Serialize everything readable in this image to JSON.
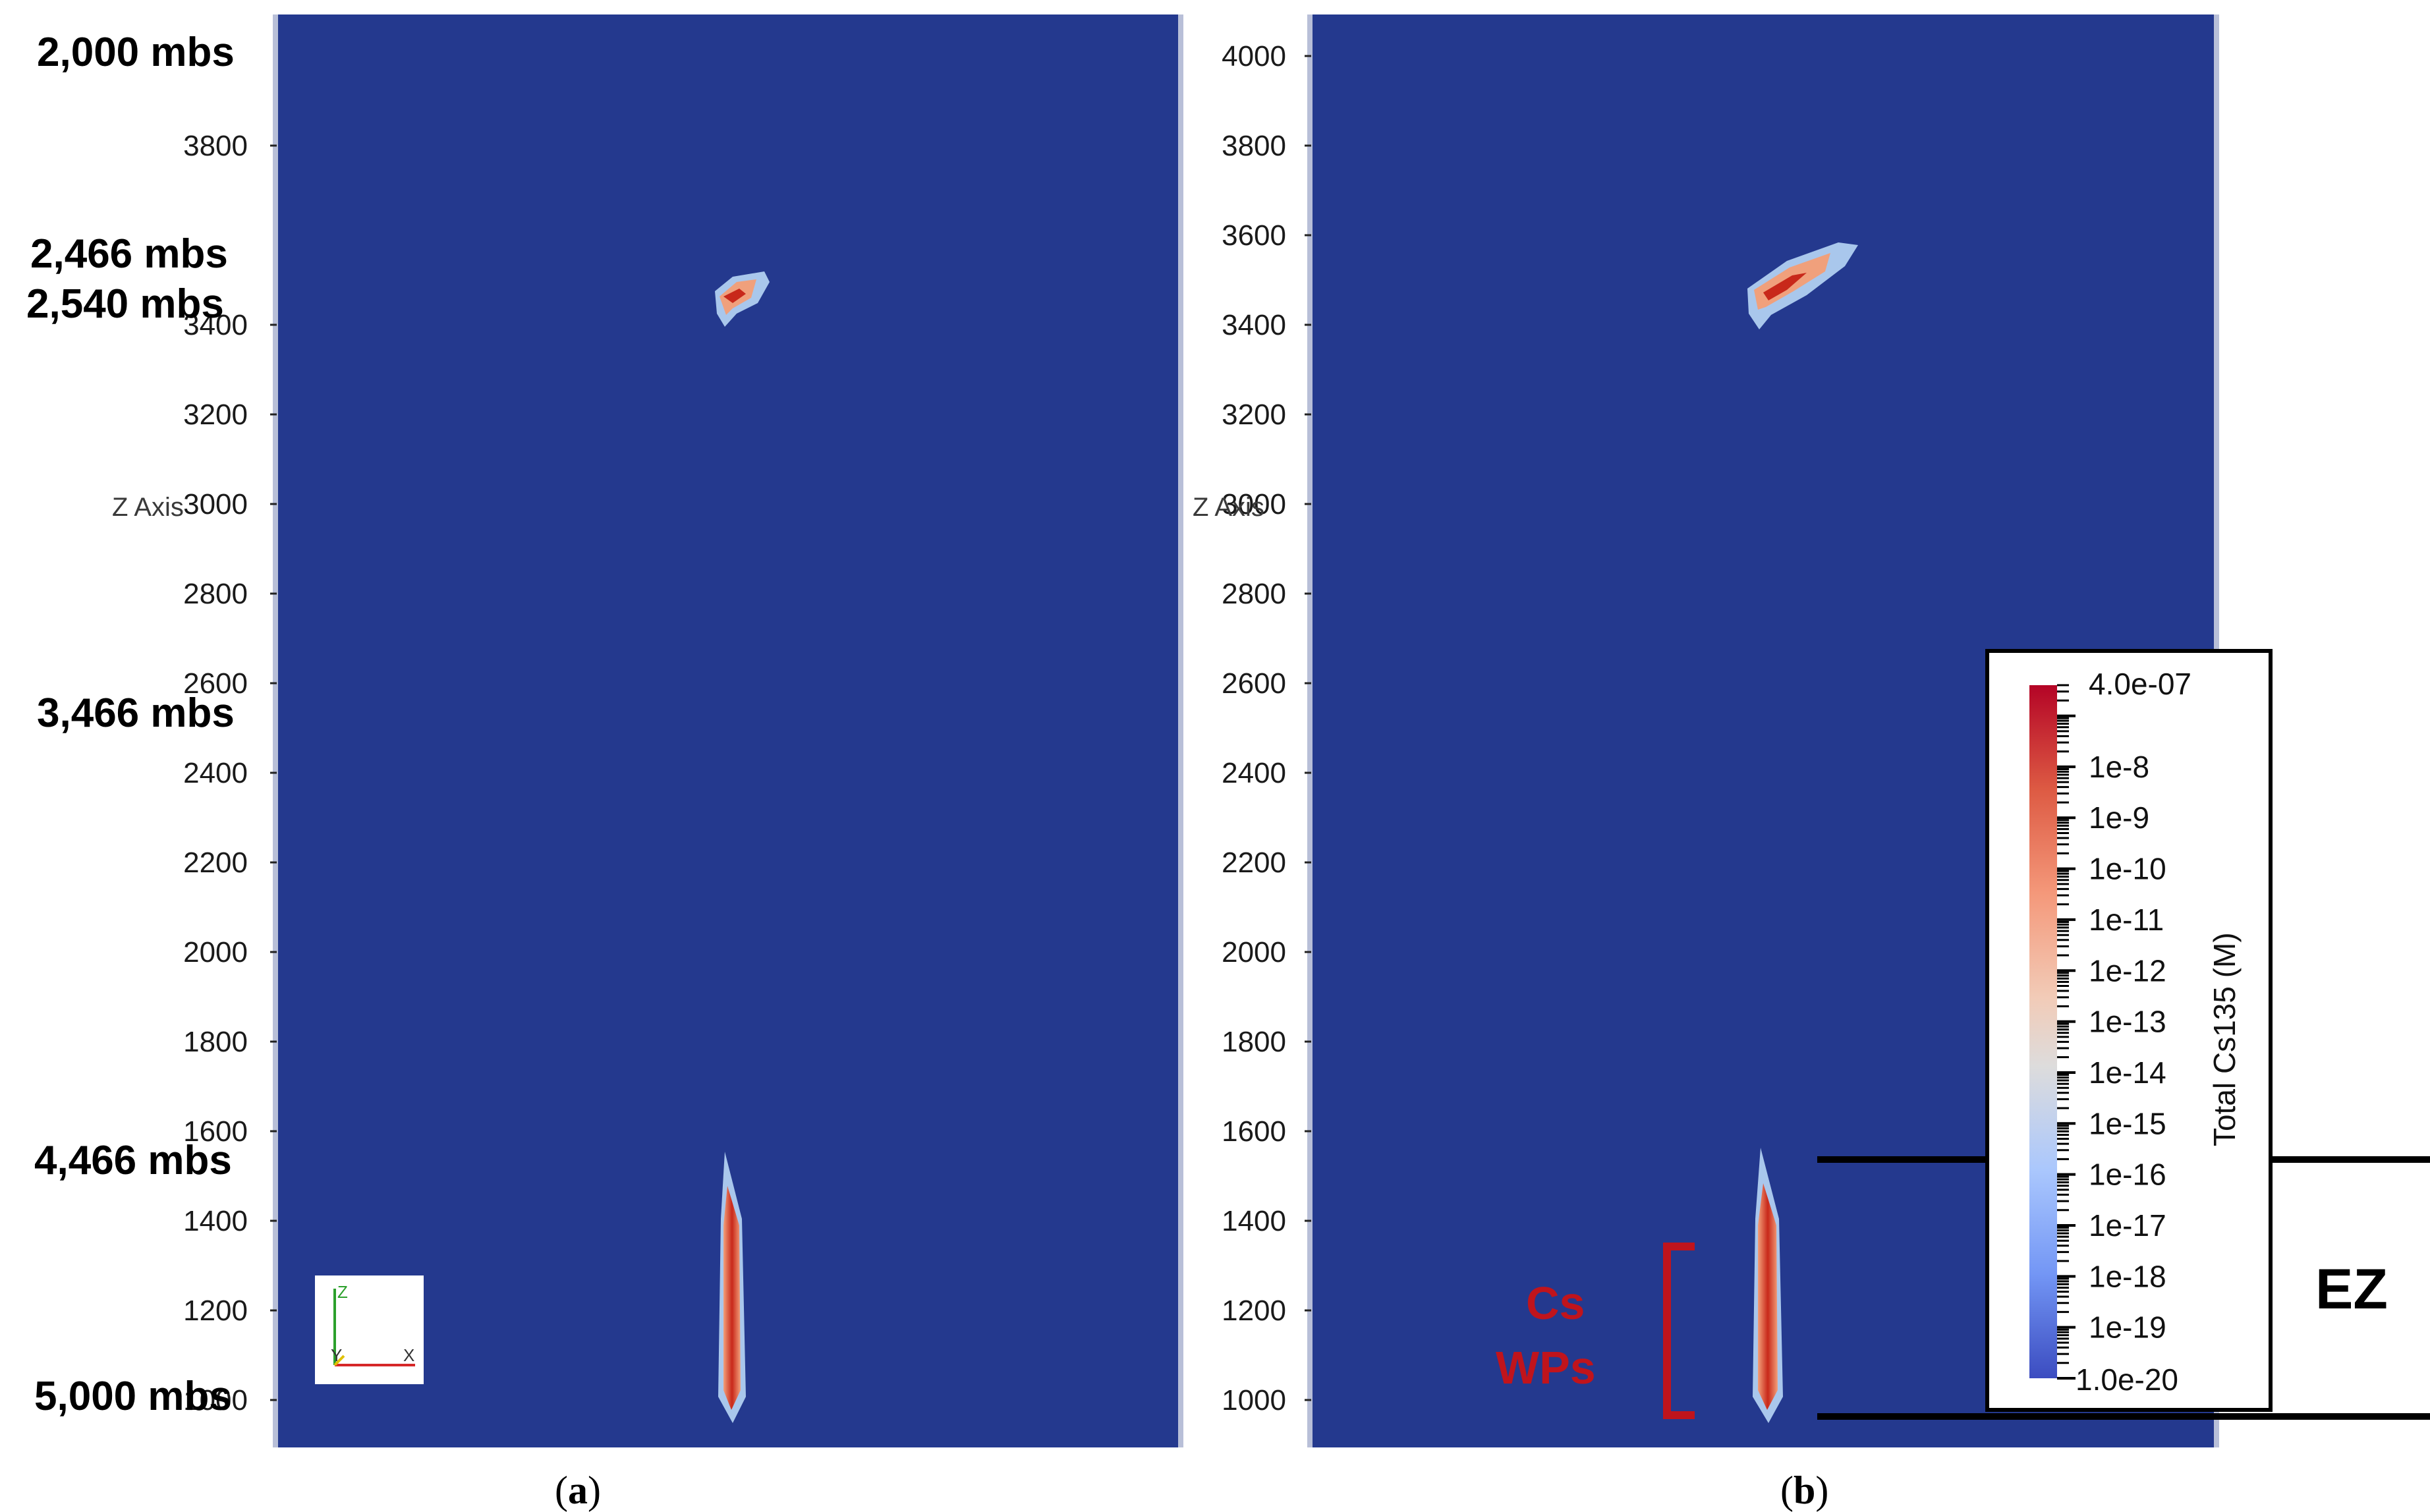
{
  "depth_labels": [
    {
      "text": "2,000 mbs"
    },
    {
      "text": "2,466 mbs"
    },
    {
      "text": "2,540 mbs"
    },
    {
      "text": "3,466 mbs"
    },
    {
      "text": "4,466 mbs"
    },
    {
      "text": "5,000 mbs"
    }
  ],
  "panel_a": {
    "caption_letter": "a",
    "axis_title": "Z Axis",
    "ticks": [
      "3800",
      "3400",
      "3200",
      "3000",
      "2800",
      "2600",
      "2400",
      "2200",
      "2000",
      "1800",
      "1600",
      "1400",
      "1200",
      "1000"
    ]
  },
  "panel_b": {
    "caption_letter": "b",
    "axis_title": "Z Axis",
    "ticks": [
      "4000",
      "3800",
      "3600",
      "3400",
      "3200",
      "3000",
      "2800",
      "2600",
      "2400",
      "2200",
      "2000",
      "1800",
      "1600",
      "1400",
      "1200",
      "1000"
    ]
  },
  "orientation_axes": {
    "z": "Z",
    "y": "Y",
    "x": "X"
  },
  "colorbar": {
    "title": "Total Cs135 (M)",
    "max_label": "4.0e-07",
    "min_label": "1.0e-20",
    "labels": [
      "1e-8",
      "1e-9",
      "1e-10",
      "1e-11",
      "1e-12",
      "1e-13",
      "1e-14",
      "1e-15",
      "1e-16",
      "1e-17",
      "1e-18",
      "1e-19"
    ],
    "scale": "log"
  },
  "annotations": {
    "cs_line1": "Cs",
    "cs_line2": "WPs",
    "ez": "EZ"
  },
  "colors": {
    "background_field": "#24398e",
    "plume_high": "#d6301f",
    "plume_mid": "#f08a5d",
    "plume_low": "#a9c7ec",
    "annotation_red": "#c0141c"
  }
}
